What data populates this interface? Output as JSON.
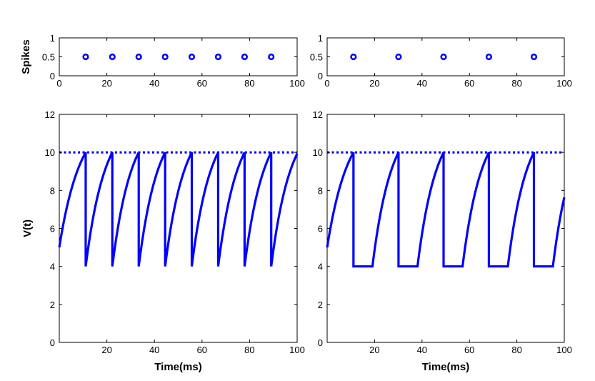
{
  "chart_data": [
    {
      "id": "spikes-left",
      "type": "scatter",
      "ylabel": "Spikes",
      "xlabel": "",
      "xlim": [
        0,
        100
      ],
      "ylim": [
        0,
        1
      ],
      "xticks": [
        0,
        20,
        40,
        60,
        80,
        100
      ],
      "yticks": [
        0,
        0.5,
        1
      ],
      "marker": "circle",
      "color": "#0000ff",
      "series": [
        {
          "x": [
            11.1,
            22.3,
            33.4,
            44.5,
            55.7,
            66.8,
            77.9,
            89.1
          ],
          "y": [
            0.5,
            0.5,
            0.5,
            0.5,
            0.5,
            0.5,
            0.5,
            0.5
          ]
        }
      ]
    },
    {
      "id": "spikes-right",
      "type": "scatter",
      "ylabel": "",
      "xlabel": "",
      "xlim": [
        0,
        100
      ],
      "ylim": [
        0,
        1
      ],
      "xticks": [
        0,
        20,
        40,
        60,
        80,
        100
      ],
      "yticks": [
        0,
        0.5,
        1
      ],
      "marker": "circle",
      "color": "#0000ff",
      "series": [
        {
          "x": [
            11.1,
            30.1,
            49.1,
            68.2,
            87.2
          ],
          "y": [
            0.5,
            0.5,
            0.5,
            0.5,
            0.5
          ]
        }
      ]
    },
    {
      "id": "voltage-left",
      "type": "line",
      "ylabel": "V(t)",
      "xlabel": "Time(ms)",
      "xlim": [
        0,
        100
      ],
      "ylim": [
        0,
        12
      ],
      "xticks": [
        20,
        40,
        60,
        80,
        100
      ],
      "yticks": [
        0,
        2,
        4,
        6,
        8,
        10,
        12
      ],
      "color": "#0000ff",
      "threshold": 10,
      "reset": 4,
      "start_value": 5,
      "spike_times": [
        11.1,
        22.3,
        33.4,
        44.5,
        55.7,
        66.8,
        77.9,
        89.1
      ],
      "refractory_ms": 0,
      "end_value": 9.8
    },
    {
      "id": "voltage-right",
      "type": "line",
      "ylabel": "",
      "xlabel": "Time(ms)",
      "xlim": [
        0,
        100
      ],
      "ylim": [
        0,
        12
      ],
      "xticks": [
        20,
        40,
        60,
        80,
        100
      ],
      "yticks": [
        0,
        2,
        4,
        6,
        8,
        10,
        12
      ],
      "color": "#0000ff",
      "threshold": 10,
      "reset": 4,
      "start_value": 5,
      "spike_times": [
        11.1,
        30.1,
        49.1,
        68.2,
        87.2
      ],
      "refractory_ms": 8,
      "end_value": 7.2
    }
  ]
}
